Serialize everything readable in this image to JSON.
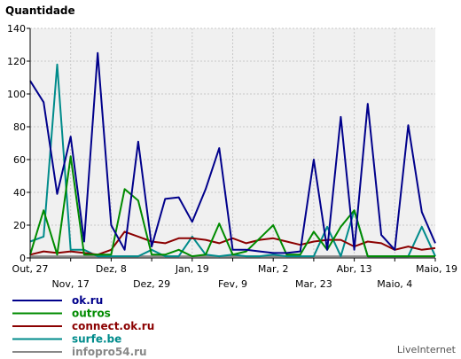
{
  "chart_data": {
    "type": "line",
    "title": "Quantidade",
    "credit": "LiveInternet",
    "ylim": [
      0,
      140
    ],
    "y_ticks": [
      "0",
      "20",
      "40",
      "60",
      "80",
      "100",
      "120",
      "140"
    ],
    "grid": true,
    "legend_position": "bottom-left",
    "x_tick_labels_upper": [
      "Out, 27",
      "Dez, 8",
      "Jan, 19",
      "Mar, 2",
      "Abr, 13",
      "Maio, 19"
    ],
    "x_tick_labels_lower": [
      "Nov, 17",
      "Dez, 29",
      "Fev, 9",
      "Mar, 23",
      "Maio, 4"
    ],
    "x_upper_index": [
      0,
      6,
      12,
      18,
      24,
      30
    ],
    "x_lower_index": [
      3,
      9,
      15,
      21,
      27
    ],
    "n_points": 31,
    "series": [
      {
        "name": "ok.ru",
        "color": "#00008b",
        "values": [
          108,
          95,
          39,
          74,
          10,
          125,
          20,
          5,
          71,
          7,
          36,
          37,
          22,
          42,
          67,
          5,
          5,
          4,
          3,
          3,
          4,
          60,
          5,
          86,
          5,
          94,
          14,
          5,
          81,
          28,
          9
        ]
      },
      {
        "name": "outros",
        "color": "#008b00",
        "values": [
          2,
          29,
          2,
          62,
          2,
          2,
          2,
          42,
          35,
          2,
          2,
          5,
          1,
          2,
          21,
          2,
          4,
          12,
          20,
          2,
          2,
          16,
          5,
          19,
          29,
          1,
          1,
          1,
          1,
          1,
          1
        ]
      },
      {
        "name": "connect.ok.ru",
        "color": "#8b0000",
        "values": [
          2,
          4,
          3,
          4,
          3,
          2,
          5,
          16,
          13,
          10,
          9,
          12,
          12,
          11,
          9,
          12,
          9,
          11,
          12,
          10,
          8,
          10,
          11,
          11,
          7,
          10,
          9,
          5,
          7,
          5,
          6
        ]
      },
      {
        "name": "surfe.be",
        "color": "#008b8b",
        "values": [
          10,
          13,
          118,
          5,
          5,
          1,
          1,
          1,
          1,
          5,
          1,
          1,
          13,
          2,
          1,
          2,
          1,
          1,
          2,
          1,
          1,
          1,
          19,
          1,
          29,
          1,
          1,
          1,
          1,
          19,
          1
        ]
      },
      {
        "name": "infopro54.ru",
        "color": "#888888",
        "values": [
          1,
          1,
          1,
          1,
          1,
          1,
          1,
          1,
          1,
          1,
          1,
          1,
          1,
          1,
          1,
          1,
          1,
          1,
          1,
          1,
          1,
          1,
          1,
          1,
          1,
          1,
          1,
          1,
          1,
          1,
          1
        ]
      }
    ]
  }
}
